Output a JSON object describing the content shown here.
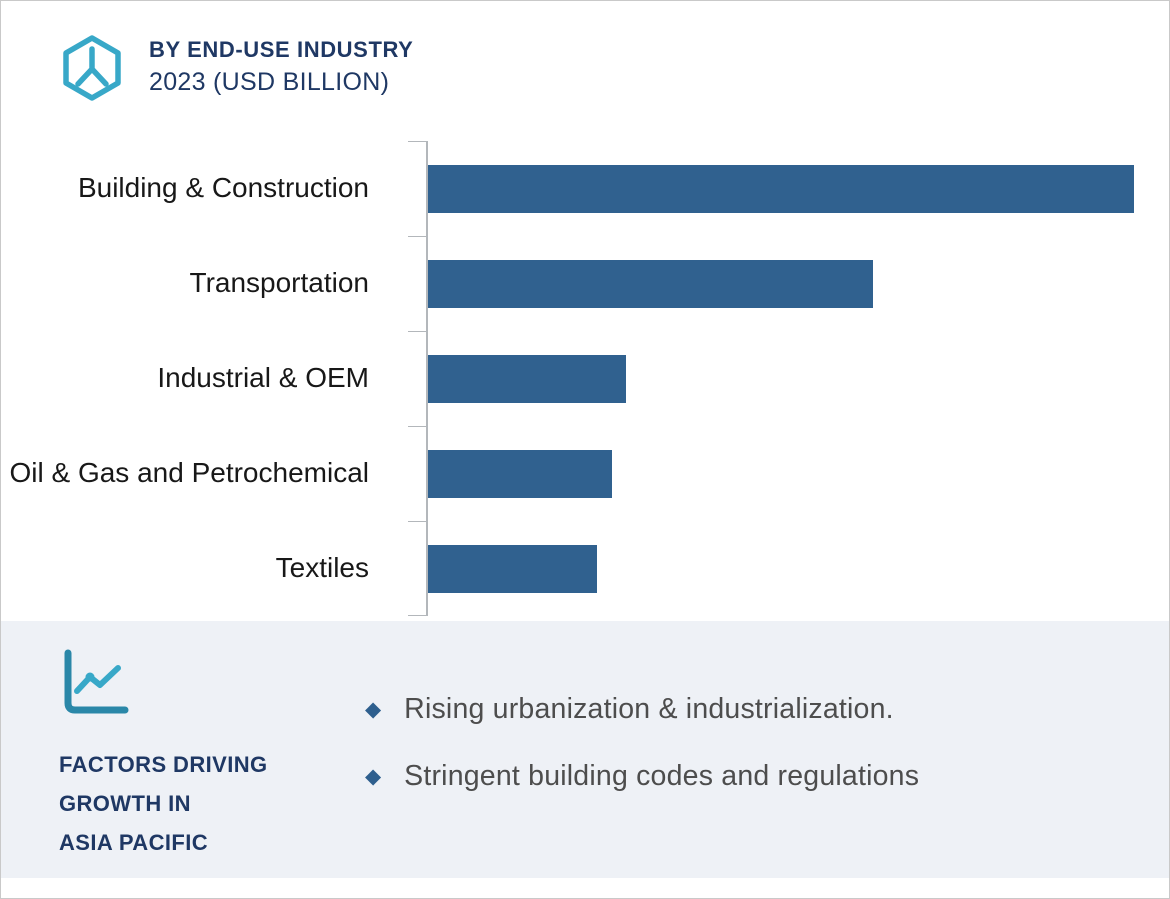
{
  "page": {
    "background": "#ffffff",
    "border_color": "#c9c9c9"
  },
  "header": {
    "logo_icon": "hexagon-y-logo",
    "title": "BY END-USE INDUSTRY",
    "subtitle": "2023 (USD BILLION)",
    "title_color": "#1f3864",
    "accent_color": "#38a8c8"
  },
  "chart_data": {
    "type": "bar",
    "orientation": "horizontal",
    "title": "BY END-USE INDUSTRY 2023 (USD BILLION)",
    "categories": [
      "Building & Construction",
      "Transportation",
      "Industrial & OEM",
      "Oil & Gas and Petrochemical",
      "Textiles"
    ],
    "values": [
      100,
      63,
      28,
      26,
      24
    ],
    "values_note": "numeric data labels not shown in image; values are estimated percent of longest bar",
    "xlabel": "",
    "ylabel": "",
    "xlim": [
      0,
      100
    ],
    "grid": false,
    "legend": "none",
    "bar_color": "#30618f",
    "axis_color": "#b3b7bb"
  },
  "factors_panel": {
    "background": "#eef1f6",
    "icon": "line-chart-icon",
    "heading_lines": [
      "FACTORS DRIVING",
      "GROWTH IN",
      "ASIA PACIFIC"
    ],
    "heading_color": "#1f3864",
    "bullet_marker": "◆",
    "bullet_color": "#2e5f8e",
    "bullets": [
      "Rising urbanization & industrialization.",
      "Stringent building codes and regulations"
    ]
  }
}
